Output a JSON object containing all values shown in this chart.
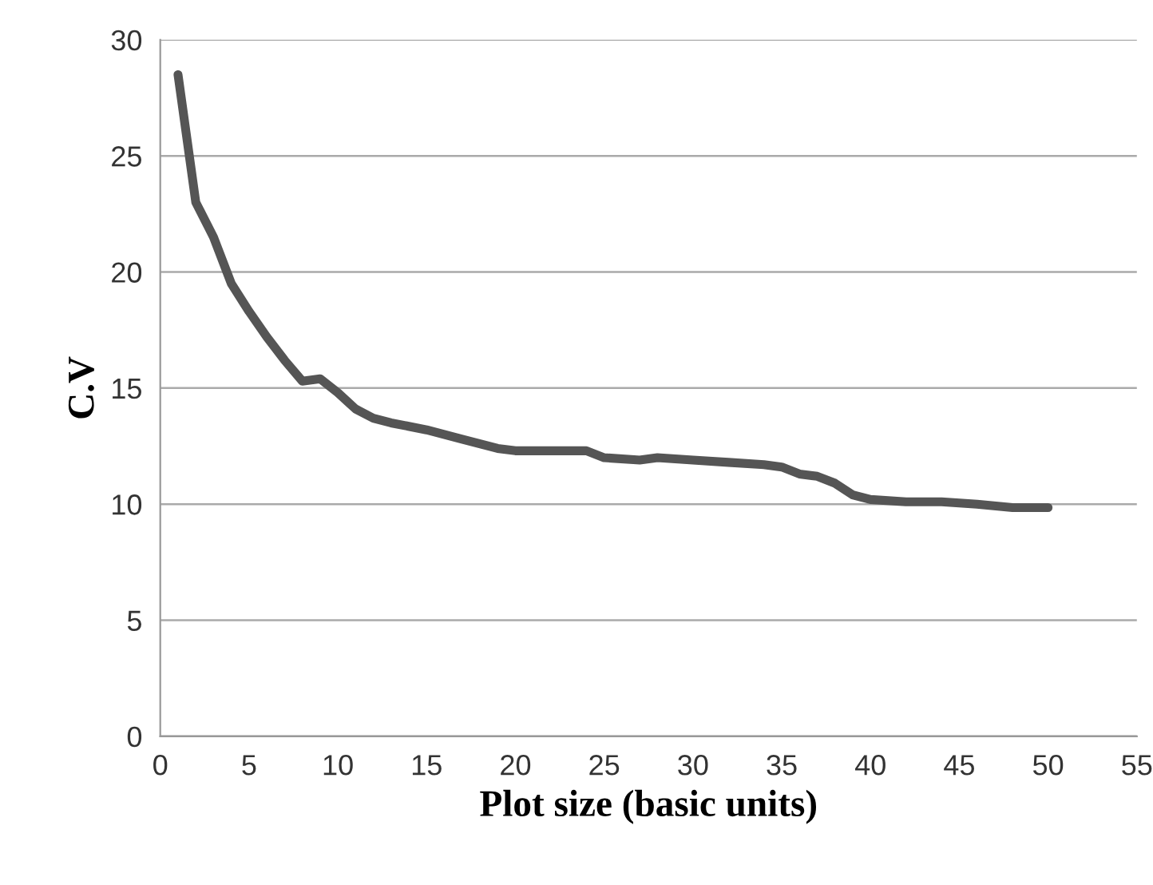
{
  "chart_data": {
    "type": "line",
    "xlabel": "Plot size (basic units)",
    "ylabel": "C.V",
    "series": [
      {
        "color": "#555555",
        "x": [
          1,
          2,
          3,
          4,
          5,
          6,
          7,
          8,
          9,
          10,
          11,
          12,
          13,
          15,
          17,
          19,
          20,
          22,
          24,
          25,
          27,
          28,
          30,
          32,
          34,
          35,
          36,
          37,
          38,
          39,
          40,
          42,
          44,
          46,
          48,
          50
        ],
        "values": [
          28.5,
          23,
          21.5,
          19.5,
          18.3,
          17.2,
          16.2,
          15.3,
          15.4,
          14.8,
          14.1,
          13.7,
          13.5,
          13.2,
          12.8,
          12.4,
          12.3,
          12.3,
          12.3,
          12.0,
          11.9,
          12.0,
          11.9,
          11.8,
          11.7,
          11.6,
          11.3,
          11.2,
          10.9,
          10.4,
          10.2,
          10.1,
          10.1,
          10.0,
          9.85,
          9.85
        ]
      }
    ],
    "xlim": [
      0,
      55
    ],
    "xticks": [
      0,
      5,
      10,
      15,
      20,
      25,
      30,
      35,
      40,
      45,
      50,
      55
    ],
    "ylim": [
      0,
      30
    ],
    "yticks": [
      0,
      5,
      10,
      15,
      20,
      25,
      30
    ],
    "grid": "y",
    "legend": false,
    "marker": "none",
    "line_style": "solid"
  }
}
